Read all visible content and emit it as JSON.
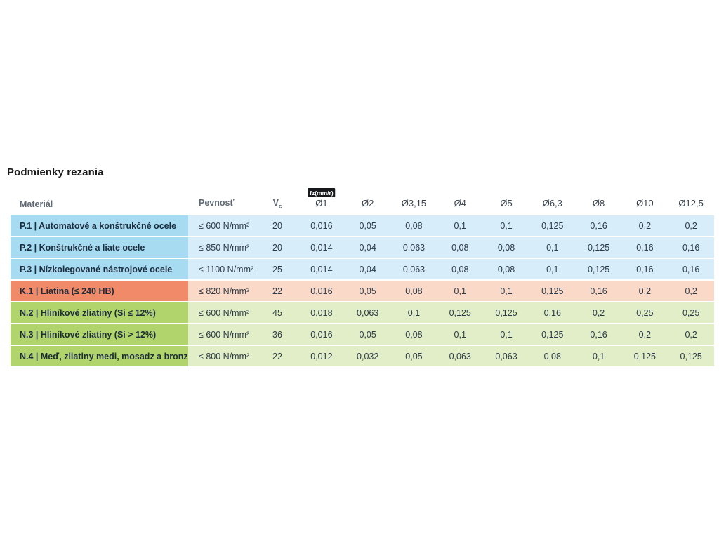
{
  "title": "Podmienky rezania",
  "table": {
    "headers": {
      "material": "Materiál",
      "strength": "Pevnosť",
      "vc_main": "V",
      "vc_sub": "c",
      "fz_badge": "fz(mm/r)",
      "diameters": [
        "Ø1",
        "Ø2",
        "Ø3,15",
        "Ø4",
        "Ø5",
        "Ø6,3",
        "Ø8",
        "Ø10",
        "Ø12,5"
      ]
    },
    "rows": [
      {
        "material": "P.1 | Automatové a konštrukčné ocele",
        "strength": "≤ 600 N/mm²",
        "vc": "20",
        "values": [
          "0,016",
          "0,05",
          "0,08",
          "0,1",
          "0,1",
          "0,125",
          "0,16",
          "0,2",
          "0,2"
        ],
        "color_group": "steel"
      },
      {
        "material": "P.2 | Konštrukčné a liate ocele",
        "strength": "≤ 850 N/mm²",
        "vc": "20",
        "values": [
          "0,014",
          "0,04",
          "0,063",
          "0,08",
          "0,08",
          "0,1",
          "0,125",
          "0,16",
          "0,16"
        ],
        "color_group": "steel"
      },
      {
        "material": "P.3 | Nízkolegované nástrojové ocele",
        "strength": "≤ 1100 N/mm²",
        "vc": "25",
        "values": [
          "0,014",
          "0,04",
          "0,063",
          "0,08",
          "0,08",
          "0,1",
          "0,125",
          "0,16",
          "0,16"
        ],
        "color_group": "steel"
      },
      {
        "material": "K.1 | Liatina (≤ 240 HB)",
        "strength": "≤ 820 N/mm²",
        "vc": "22",
        "values": [
          "0,016",
          "0,05",
          "0,08",
          "0,1",
          "0,1",
          "0,125",
          "0,16",
          "0,2",
          "0,2"
        ],
        "color_group": "cast_iron"
      },
      {
        "material": "N.2 | Hliníkové zliatiny (Si ≤ 12%)",
        "strength": "≤ 600 N/mm²",
        "vc": "45",
        "values": [
          "0,018",
          "0,063",
          "0,1",
          "0,125",
          "0,125",
          "0,16",
          "0,2",
          "0,25",
          "0,25"
        ],
        "color_group": "nonferrous"
      },
      {
        "material": "N.3 | Hliníkové zliatiny (Si > 12%)",
        "strength": "≤ 600 N/mm²",
        "vc": "36",
        "values": [
          "0,016",
          "0,05",
          "0,08",
          "0,1",
          "0,1",
          "0,125",
          "0,16",
          "0,2",
          "0,2"
        ],
        "color_group": "nonferrous"
      },
      {
        "material": "N.4 | Meď, zliatiny medi, mosadz a bronz",
        "strength": "≤ 800 N/mm²",
        "vc": "22",
        "values": [
          "0,012",
          "0,032",
          "0,05",
          "0,063",
          "0,063",
          "0,08",
          "0,1",
          "0,125",
          "0,125"
        ],
        "color_group": "nonferrous"
      }
    ],
    "colors": {
      "steel": {
        "dark": "#a6dbf2",
        "light": "#d7edf9"
      },
      "cast_iron": {
        "dark": "#f08a68",
        "light": "#fad9c8"
      },
      "nonferrous": {
        "dark": "#b1d56c",
        "light": "#e1eec7"
      },
      "badge_background": "#17191c",
      "badge_text": "#ffffff"
    }
  }
}
